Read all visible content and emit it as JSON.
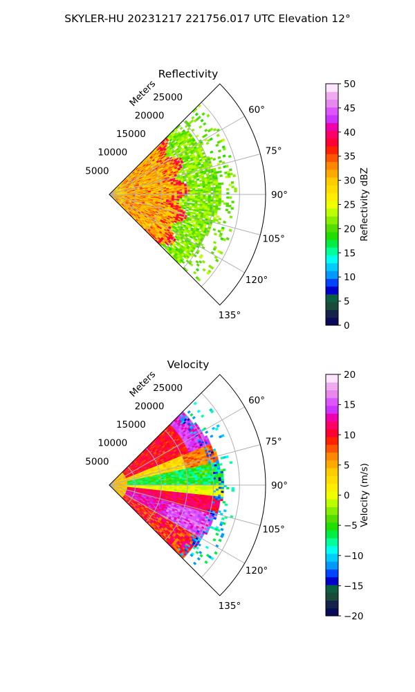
{
  "figure": {
    "title": "SKYLER-HU  20231217  221756.017 UTC Elevation 12°"
  },
  "chart_data": [
    {
      "type": "heatmap",
      "projection": "polar-sector",
      "title": "Reflectivity",
      "range_label": "Meters",
      "range_ticks": [
        5000,
        10000,
        15000,
        20000,
        25000
      ],
      "range_tick_labels": [
        "5000",
        "10000",
        "15000",
        "20000",
        "25000"
      ],
      "range_max_m": 30000,
      "azimuth_range_deg": [
        45,
        135
      ],
      "azimuth_ticks": [
        60,
        75,
        90,
        105,
        120,
        135
      ],
      "azimuth_tick_labels": [
        "60°",
        "75°",
        "90°",
        "105°",
        "120°",
        "135°"
      ],
      "grid": true,
      "field": "reflectivity",
      "colorbar": {
        "label": "Reflectivity dBZ",
        "min": 0,
        "max": 50,
        "ticks": [
          0,
          5,
          10,
          15,
          20,
          25,
          30,
          35,
          40,
          45,
          50
        ],
        "tick_labels": [
          "0",
          "5",
          "10",
          "15",
          "20",
          "25",
          "30",
          "35",
          "40",
          "45",
          "50"
        ],
        "colors": [
          "#0a0a5a",
          "#13234a",
          "#1a4a3a",
          "#0a6040",
          "#0000cc",
          "#0044ff",
          "#0099ff",
          "#00ccff",
          "#00ffee",
          "#00ff99",
          "#00ee44",
          "#22dd00",
          "#55dd00",
          "#88ee00",
          "#bbff00",
          "#eeff00",
          "#ffee00",
          "#ffdd00",
          "#ffcc00",
          "#ffaa00",
          "#ff8800",
          "#ff5500",
          "#ff2200",
          "#ff0033",
          "#ff0066",
          "#ee00aa",
          "#cc33ff",
          "#dd55ff",
          "#e888ee",
          "#f0aaf0",
          "#fde6fd"
        ]
      }
    },
    {
      "type": "heatmap",
      "projection": "polar-sector",
      "title": "Velocity",
      "range_label": "Meters",
      "range_ticks": [
        5000,
        10000,
        15000,
        20000,
        25000
      ],
      "range_tick_labels": [
        "5000",
        "10000",
        "15000",
        "20000",
        "25000"
      ],
      "range_max_m": 30000,
      "azimuth_range_deg": [
        45,
        135
      ],
      "azimuth_ticks": [
        60,
        75,
        90,
        105,
        120,
        135
      ],
      "azimuth_tick_labels": [
        "60°",
        "75°",
        "90°",
        "105°",
        "120°",
        "135°"
      ],
      "grid": true,
      "field": "velocity",
      "colorbar": {
        "label": "Velocity (m/s)",
        "min": -20,
        "max": 20,
        "ticks": [
          -20,
          -15,
          -10,
          -5,
          0,
          5,
          10,
          15,
          20
        ],
        "tick_labels": [
          "−20",
          "−15",
          "−10",
          "−5",
          "0",
          "5",
          "10",
          "15",
          "20"
        ],
        "colors": [
          "#0a0a5a",
          "#13234a",
          "#1a4a3a",
          "#0a6040",
          "#0000cc",
          "#0044ff",
          "#0099ff",
          "#00ccff",
          "#00ffee",
          "#00ff99",
          "#00ee44",
          "#22dd00",
          "#55dd00",
          "#88ee00",
          "#bbff00",
          "#eeff00",
          "#ffee00",
          "#ffdd00",
          "#ffcc00",
          "#ffaa00",
          "#ff8800",
          "#ff5500",
          "#ff2200",
          "#ff0033",
          "#ff0066",
          "#ee00aa",
          "#cc33ff",
          "#dd55ff",
          "#e888ee",
          "#f0aaf0",
          "#fde6fd"
        ]
      }
    }
  ]
}
